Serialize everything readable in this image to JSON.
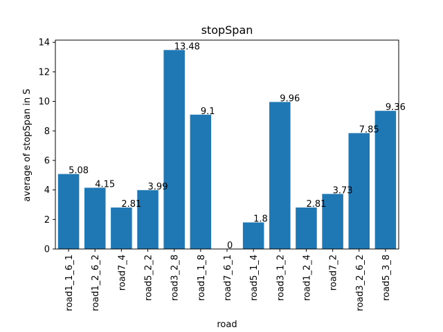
{
  "chart_data": {
    "type": "bar",
    "title": "stopSpan",
    "xlabel": "road",
    "ylabel": "average of stopSpan in S",
    "categories": [
      "road1_1_6_1",
      "road1_2_6_2",
      "road7_4",
      "road5_2_2",
      "road3_2_8",
      "road1_1_8",
      "road7_6_1",
      "road5_1_4",
      "road3_1_2",
      "road1_2_4",
      "road7_2",
      "road3_2_6_2",
      "road5_3_8"
    ],
    "values": [
      5.08,
      4.15,
      2.81,
      3.99,
      13.48,
      9.1,
      0,
      1.8,
      9.96,
      2.81,
      3.73,
      7.85,
      9.36
    ],
    "value_labels": [
      "5.08",
      "4.15",
      "2.81",
      "3.99",
      "13.48",
      "9.1",
      "0",
      "1.8",
      "9.96",
      "2.81",
      "3.73",
      "7.85",
      "9.36"
    ],
    "yticks": [
      "0",
      "2",
      "4",
      "6",
      "8",
      "10",
      "12",
      "14"
    ],
    "ylim": [
      0,
      14.15
    ],
    "grid": false,
    "legend": "none",
    "bar_color": "#1f77b4"
  }
}
